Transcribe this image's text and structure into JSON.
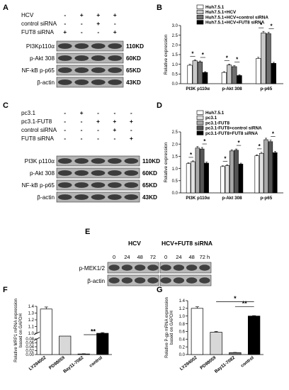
{
  "panels": {
    "A": {
      "letter": "A",
      "conditions": [
        {
          "label": "HCV",
          "marks": [
            "-",
            "+",
            "+",
            "+"
          ]
        },
        {
          "label": "control siRNA",
          "marks": [
            "-",
            "-",
            "+",
            "-"
          ]
        },
        {
          "label": "FUT8 siRNA",
          "marks": [
            "+",
            "-",
            "-",
            "+"
          ]
        }
      ],
      "bands": [
        {
          "name": "PI3Kp110α",
          "size": "110KD"
        },
        {
          "name": "p-Akt 308",
          "size": "60KD"
        },
        {
          "name": "NF-kB p-p65",
          "size": "65KD"
        },
        {
          "name": "β-actin",
          "size": "43KD"
        }
      ]
    },
    "C": {
      "letter": "C",
      "conditions": [
        {
          "label": "pc3.1",
          "marks": [
            "-",
            "+",
            "-",
            "-",
            "-"
          ]
        },
        {
          "label": "pc3.1-FUT8",
          "marks": [
            "-",
            "-",
            "+",
            "+",
            "+"
          ]
        },
        {
          "label": "control siRNA",
          "marks": [
            "-",
            "-",
            "-",
            "+",
            "-"
          ]
        },
        {
          "label": "FUT8 siRNA",
          "marks": [
            "-",
            "-",
            "-",
            "-",
            "+"
          ]
        }
      ],
      "bands": [
        {
          "name": "PI3K p110α",
          "size": "110KD"
        },
        {
          "name": "p-Akt 308",
          "size": "60KD"
        },
        {
          "name": "NF-kB p-p65",
          "size": "65KD"
        },
        {
          "name": "β-actin",
          "size": "43KD"
        }
      ]
    },
    "E": {
      "letter": "E",
      "groups": [
        "HCV",
        "HCV+FUT8 siRNA"
      ],
      "timepoints": [
        "0",
        "24",
        "48",
        "72",
        "0",
        "24",
        "48",
        "72 h"
      ],
      "bands": [
        "p-MEK1/2",
        "β-actin"
      ]
    }
  },
  "chart_data": [
    {
      "panel": "B",
      "type": "bar",
      "ylabel": "Relative expression",
      "ylim": [
        0.0,
        3.0
      ],
      "yticks": [
        "0.0",
        "0.5",
        "1.0",
        "1.5",
        "2.0",
        "2.5",
        "3.0"
      ],
      "categories": [
        "PI3K p110α",
        "p-Akt 308",
        "p-p65"
      ],
      "series": [
        {
          "name": "Huh7.5.1",
          "values": [
            0.95,
            0.58,
            1.3
          ],
          "errors": [
            0.05,
            0.04,
            0.06
          ],
          "color": "#ffffff"
        },
        {
          "name": "Huh7.5.1+HCV",
          "values": [
            1.18,
            0.96,
            2.62
          ],
          "errors": [
            0.05,
            0.05,
            0.08
          ],
          "color": "#c8c8c8"
        },
        {
          "name": "Huh7.5.1+HCV+control siRNA",
          "values": [
            1.12,
            0.88,
            2.58
          ],
          "errors": [
            0.05,
            0.05,
            0.08
          ],
          "color": "#6e6e6e"
        },
        {
          "name": "Huh7.5.1+HCV+FUT8 siRNA",
          "values": [
            0.58,
            0.42,
            1.05
          ],
          "errors": [
            0.04,
            0.04,
            0.05
          ],
          "color": "#000000"
        }
      ],
      "annotations": [
        "*",
        "*",
        "*",
        "*",
        "*",
        "*"
      ]
    },
    {
      "panel": "D",
      "type": "bar",
      "ylabel": "Relative expression",
      "ylim": [
        0.0,
        2.5
      ],
      "yticks": [
        "0.0",
        "0.5",
        "1.0",
        "1.5",
        "2.0",
        "2.5"
      ],
      "categories": [
        "PI3K p110α",
        "p-Akt 308",
        "p-p65"
      ],
      "series": [
        {
          "name": "Huh7.5.1",
          "values": [
            1.2,
            1.08,
            1.52
          ],
          "errors": [
            0.03,
            0.03,
            0.04
          ],
          "color": "#ffffff"
        },
        {
          "name": "pc3.1",
          "values": [
            1.28,
            1.12,
            1.62
          ],
          "errors": [
            0.03,
            0.03,
            0.04
          ],
          "color": "#e0e0e0"
        },
        {
          "name": "pc3.1-FUT8",
          "values": [
            1.84,
            1.72,
            2.18
          ],
          "errors": [
            0.06,
            0.05,
            0.06
          ],
          "color": "#a8a8a8"
        },
        {
          "name": "pc3.1-FUT8+control siRNA",
          "values": [
            1.8,
            1.75,
            2.1
          ],
          "errors": [
            0.06,
            0.05,
            0.06
          ],
          "color": "#555555"
        },
        {
          "name": "pc3.1-FUT8+FUT8 siRNA",
          "values": [
            1.22,
            1.18,
            1.65
          ],
          "errors": [
            0.04,
            0.04,
            0.05
          ],
          "color": "#000000"
        }
      ],
      "annotations": [
        "*",
        "*",
        "*",
        "*",
        "*",
        "*"
      ]
    },
    {
      "panel": "F",
      "type": "bar",
      "ylabel": "Relative MRP1 mRNA expression based on GAPDH",
      "broken_axis": true,
      "yticks_upper": [
        "1.0",
        "1.1",
        "1.2",
        "1.3",
        "1.4"
      ],
      "yticks_lower": [
        "0.00",
        "0.02",
        "0.04",
        "0.06",
        "0.08"
      ],
      "categories": [
        "LY294002",
        "PD98059",
        "Bay11-7082",
        "control"
      ],
      "values": [
        1.36,
        0.8,
        0.003,
        1.0
      ],
      "errors": [
        0.03,
        0.01,
        0.001,
        0.01
      ],
      "colors": [
        "#ffffff",
        "#d8d8d8",
        "#7a7a7a",
        "#000000"
      ],
      "annotations": [
        "**"
      ]
    },
    {
      "panel": "G",
      "type": "bar",
      "ylabel": "Relative P-gp mRNA expression based on GAPDH",
      "ylim": [
        0.0,
        1.4
      ],
      "yticks": [
        "0.0",
        "0.2",
        "0.4",
        "0.6",
        "0.8",
        "1.0",
        "1.2",
        "1.4"
      ],
      "categories": [
        "LY294002",
        "PD98059",
        "Bay11-7082",
        "control"
      ],
      "values": [
        1.2,
        0.58,
        0.05,
        1.0
      ],
      "errors": [
        0.04,
        0.02,
        0.005,
        0.01
      ],
      "colors": [
        "#ffffff",
        "#d8d8d8",
        "#7a7a7a",
        "#000000"
      ],
      "annotations": [
        "*",
        "**"
      ]
    }
  ]
}
